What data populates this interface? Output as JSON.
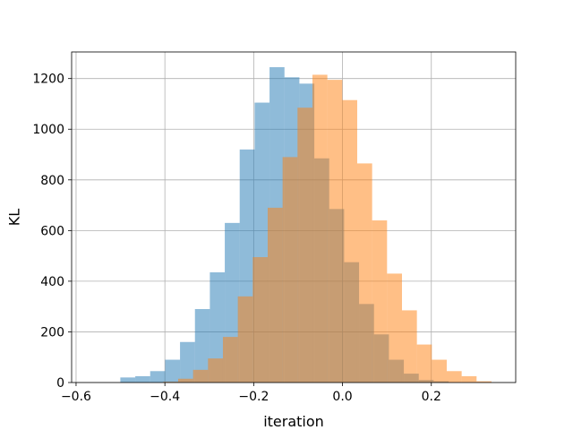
{
  "chart_data": {
    "type": "histogram",
    "title": "",
    "xlabel": "iteration",
    "ylabel": "KL",
    "xlim": [
      -0.61,
      0.39
    ],
    "ylim": [
      0,
      1305
    ],
    "xticks": [
      -0.6,
      -0.4,
      -0.2,
      0.0,
      0.2
    ],
    "xtick_labels": [
      "−0.6",
      "−0.4",
      "−0.2",
      "0.0",
      "0.2"
    ],
    "yticks": [
      0,
      200,
      400,
      600,
      800,
      1000,
      1200
    ],
    "ytick_labels": [
      "0",
      "200",
      "400",
      "600",
      "800",
      "1000",
      "1200"
    ],
    "grid": true,
    "legend": "none",
    "series": [
      {
        "color": "#1f77b4",
        "alpha": 0.5,
        "bin_start": -0.5003,
        "bin_width": 0.0336,
        "values": [
          20,
          25,
          45,
          90,
          160,
          290,
          435,
          630,
          920,
          1105,
          1245,
          1205,
          1180,
          885,
          685,
          475,
          310,
          190,
          90,
          35,
          10,
          5
        ]
      },
      {
        "color": "#ff7f0e",
        "alpha": 0.5,
        "bin_start": -0.4037,
        "bin_width": 0.0336,
        "values": [
          3,
          15,
          50,
          95,
          180,
          340,
          495,
          690,
          890,
          1085,
          1215,
          1195,
          1115,
          865,
          640,
          430,
          285,
          150,
          90,
          45,
          25,
          5
        ]
      }
    ]
  }
}
